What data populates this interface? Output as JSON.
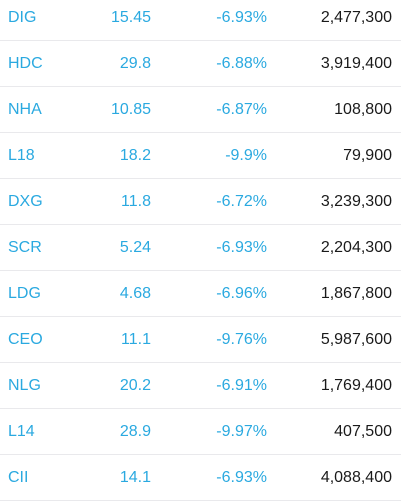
{
  "colors": {
    "symbol": "#2aa9e0",
    "price": "#2aa9e0",
    "change": "#2aa9e0",
    "volume": "#1a1a1a",
    "divider": "#e9e9ec"
  },
  "table": {
    "rows": [
      {
        "symbol": "DIG",
        "price": "15.45",
        "change": "-6.93%",
        "volume": "2,477,300"
      },
      {
        "symbol": "HDC",
        "price": "29.8",
        "change": "-6.88%",
        "volume": "3,919,400"
      },
      {
        "symbol": "NHA",
        "price": "10.85",
        "change": "-6.87%",
        "volume": "108,800"
      },
      {
        "symbol": "L18",
        "price": "18.2",
        "change": "-9.9%",
        "volume": "79,900"
      },
      {
        "symbol": "DXG",
        "price": "11.8",
        "change": "-6.72%",
        "volume": "3,239,300"
      },
      {
        "symbol": "SCR",
        "price": "5.24",
        "change": "-6.93%",
        "volume": "2,204,300"
      },
      {
        "symbol": "LDG",
        "price": "4.68",
        "change": "-6.96%",
        "volume": "1,867,800"
      },
      {
        "symbol": "CEO",
        "price": "11.1",
        "change": "-9.76%",
        "volume": "5,987,600"
      },
      {
        "symbol": "NLG",
        "price": "20.2",
        "change": "-6.91%",
        "volume": "1,769,400"
      },
      {
        "symbol": "L14",
        "price": "28.9",
        "change": "-9.97%",
        "volume": "407,500"
      },
      {
        "symbol": "CII",
        "price": "14.1",
        "change": "-6.93%",
        "volume": "4,088,400"
      }
    ]
  }
}
